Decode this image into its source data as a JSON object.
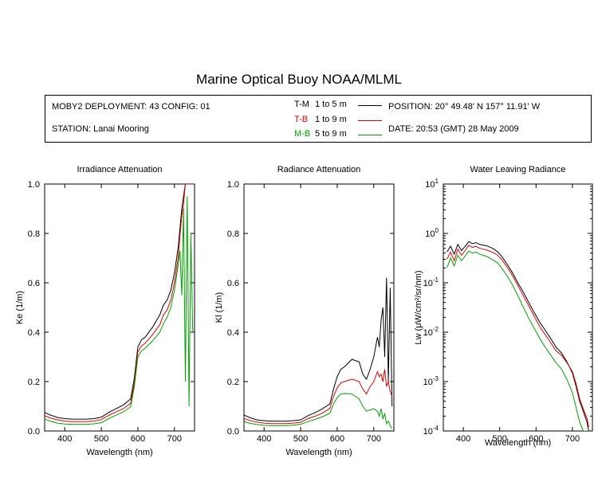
{
  "title": "Marine Optical Buoy NOAA/MLML",
  "info": {
    "deployment": "MOBY2 DEPLOYMENT: 43 CONFIG: 01",
    "station": "STATION: Lanai Mooring",
    "position": "POSITION: 20° 49.48' N   157° 11.91' W",
    "date": "DATE: 20:53 (GMT) 28 May 2009"
  },
  "legend": [
    {
      "name": "T-M",
      "range": "1 to 5  m",
      "color": "#000000"
    },
    {
      "name": "T-B",
      "range": "1 to 9  m",
      "color": "#e00000"
    },
    {
      "name": "M-B",
      "range": "5 to 9  m",
      "color": "#00a000"
    }
  ],
  "chart_data": [
    {
      "type": "line",
      "title": "Irradiance Attenuation",
      "xlabel": "Wavelength (nm)",
      "ylabel": "Ke  (1/m)",
      "xlim": [
        345,
        755
      ],
      "ylim": [
        0,
        1.0
      ],
      "xticks": [
        "400",
        "500",
        "600",
        "700"
      ],
      "yticks": [
        "0.0",
        "0.2",
        "0.4",
        "0.6",
        "0.8",
        "1.0"
      ],
      "x": [
        345,
        360,
        380,
        400,
        420,
        440,
        460,
        480,
        500,
        520,
        540,
        560,
        580,
        590,
        600,
        610,
        620,
        640,
        660,
        670,
        680,
        690,
        700,
        710,
        715,
        720,
        725,
        730,
        735,
        740,
        745,
        750
      ],
      "series": [
        {
          "name": "T-M",
          "color": "#000000",
          "values": [
            0.075,
            0.065,
            0.055,
            0.05,
            0.048,
            0.048,
            0.048,
            0.05,
            0.056,
            0.075,
            0.09,
            0.105,
            0.13,
            0.21,
            0.34,
            0.37,
            0.38,
            0.42,
            0.47,
            0.51,
            0.53,
            0.57,
            0.64,
            0.74,
            0.82,
            0.9,
            0.95,
            1.0,
            1.0,
            1.0,
            1.0,
            1.0
          ]
        },
        {
          "name": "T-B",
          "color": "#e00000",
          "values": [
            0.062,
            0.053,
            0.045,
            0.04,
            0.038,
            0.038,
            0.038,
            0.04,
            0.046,
            0.063,
            0.077,
            0.09,
            0.112,
            0.19,
            0.32,
            0.345,
            0.355,
            0.39,
            0.43,
            0.47,
            0.49,
            0.53,
            0.6,
            0.7,
            0.79,
            0.87,
            0.92,
            1.0,
            1.0,
            1.0,
            1.0,
            1.0
          ]
        },
        {
          "name": "M-B",
          "color": "#00a000",
          "values": [
            0.048,
            0.04,
            0.032,
            0.028,
            0.027,
            0.027,
            0.027,
            0.029,
            0.034,
            0.05,
            0.064,
            0.077,
            0.098,
            0.175,
            0.3,
            0.325,
            0.335,
            0.365,
            0.4,
            0.435,
            0.46,
            0.5,
            0.57,
            0.67,
            0.73,
            0.55,
            0.9,
            0.2,
            0.95,
            0.1,
            0.8,
            0.4
          ]
        }
      ]
    },
    {
      "type": "line",
      "title": "Radiance Attenuation",
      "xlabel": "Wavelength (nm)",
      "ylabel": "Kl  (1/m)",
      "xlim": [
        345,
        755
      ],
      "ylim": [
        0,
        1.0
      ],
      "xticks": [
        "400",
        "500",
        "600",
        "700"
      ],
      "yticks": [
        "0.0",
        "0.2",
        "0.4",
        "0.6",
        "0.8",
        "1.0"
      ],
      "x": [
        345,
        360,
        380,
        400,
        420,
        440,
        460,
        480,
        500,
        520,
        540,
        560,
        580,
        590,
        600,
        610,
        620,
        640,
        660,
        670,
        680,
        690,
        700,
        710,
        715,
        720,
        725,
        730,
        735,
        740,
        745,
        750
      ],
      "series": [
        {
          "name": "T-M",
          "color": "#000000",
          "values": [
            0.065,
            0.055,
            0.045,
            0.042,
            0.04,
            0.04,
            0.04,
            0.042,
            0.045,
            0.062,
            0.075,
            0.09,
            0.11,
            0.17,
            0.22,
            0.25,
            0.26,
            0.29,
            0.28,
            0.23,
            0.21,
            0.25,
            0.3,
            0.38,
            0.34,
            0.45,
            0.5,
            0.3,
            0.62,
            0.2,
            0.58,
            0.1
          ]
        },
        {
          "name": "T-B",
          "color": "#e00000",
          "values": [
            0.05,
            0.043,
            0.036,
            0.032,
            0.03,
            0.03,
            0.03,
            0.032,
            0.035,
            0.05,
            0.06,
            0.073,
            0.092,
            0.14,
            0.175,
            0.195,
            0.2,
            0.21,
            0.2,
            0.17,
            0.15,
            0.18,
            0.2,
            0.24,
            0.22,
            0.23,
            0.2,
            0.25,
            0.18,
            0.2,
            0.16,
            0.14
          ]
        },
        {
          "name": "M-B",
          "color": "#00a000",
          "values": [
            0.038,
            0.032,
            0.026,
            0.023,
            0.022,
            0.022,
            0.022,
            0.024,
            0.027,
            0.038,
            0.047,
            0.058,
            0.072,
            0.11,
            0.135,
            0.15,
            0.152,
            0.15,
            0.13,
            0.1,
            0.08,
            0.085,
            0.09,
            0.08,
            0.06,
            0.09,
            0.05,
            0.07,
            0.03,
            0.04,
            0.02,
            0.01
          ]
        }
      ]
    },
    {
      "type": "line",
      "title": "Water Leaving Radiance",
      "xlabel": "Wavelength (nm)",
      "ylabel": "Lw  (μW/cm²/sr/nm)",
      "log_y": true,
      "xlim": [
        345,
        755
      ],
      "ylim": [
        0.0001,
        10
      ],
      "xticks": [
        "400",
        "500",
        "600",
        "700"
      ],
      "yticks_exp": [
        1,
        0,
        -1,
        -2,
        -3,
        -4
      ],
      "x": [
        355,
        365,
        375,
        385,
        395,
        405,
        415,
        425,
        435,
        445,
        455,
        465,
        475,
        485,
        495,
        505,
        520,
        535,
        550,
        565,
        580,
        595,
        610,
        625,
        640,
        655,
        670,
        685,
        700,
        710,
        720,
        730,
        740,
        745
      ],
      "series": [
        {
          "name": "T-M",
          "color": "#000000",
          "values": [
            0.42,
            0.55,
            0.38,
            0.6,
            0.45,
            0.55,
            0.68,
            0.62,
            0.65,
            0.6,
            0.58,
            0.56,
            0.52,
            0.48,
            0.42,
            0.35,
            0.24,
            0.16,
            0.1,
            0.065,
            0.04,
            0.025,
            0.016,
            0.011,
            0.0075,
            0.005,
            0.0038,
            0.0025,
            0.0015,
            0.0008,
            0.0004,
            0.00025,
            0.00015,
            0.0001
          ]
        },
        {
          "name": "T-B",
          "color": "#e00000",
          "values": [
            0.3,
            0.42,
            0.28,
            0.48,
            0.36,
            0.45,
            0.58,
            0.52,
            0.55,
            0.5,
            0.48,
            0.46,
            0.43,
            0.4,
            0.36,
            0.3,
            0.21,
            0.14,
            0.088,
            0.055,
            0.034,
            0.021,
            0.013,
            0.009,
            0.0062,
            0.0042,
            0.0034,
            0.0024,
            0.0016,
            0.0009,
            0.00045,
            0.00028,
            0.00018,
            0.00012
          ]
        },
        {
          "name": "M-B",
          "color": "#00a000",
          "values": [
            0.2,
            0.32,
            0.22,
            0.36,
            0.28,
            0.35,
            0.44,
            0.4,
            0.42,
            0.38,
            0.36,
            0.34,
            0.31,
            0.28,
            0.25,
            0.2,
            0.14,
            0.09,
            0.055,
            0.032,
            0.019,
            0.012,
            0.0075,
            0.005,
            0.0035,
            0.0024,
            0.0018,
            0.0011,
            0.0006,
            0.0003,
            0.00015,
            0.0001,
            0.0001,
            0.0001
          ]
        }
      ]
    }
  ]
}
